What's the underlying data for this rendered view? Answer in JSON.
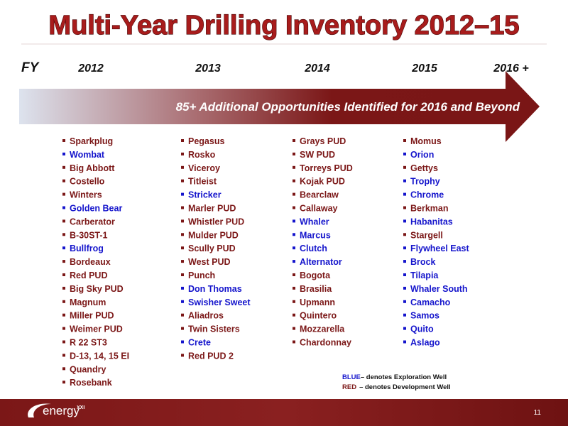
{
  "header": {
    "title": "Multi-Year Drilling Inventory 2012–15"
  },
  "timeline": {
    "label": "FY",
    "years": [
      "2012",
      "2013",
      "2014",
      "2015",
      "2016 +"
    ],
    "banner": "85+ Additional Opportunities Identified for 2016 and Beyond"
  },
  "columns": [
    {
      "items": [
        {
          "text": "Sparkplug",
          "color": "#7b1717"
        },
        {
          "text": "Wombat",
          "color": "#1515cc"
        },
        {
          "text": "Big Abbott",
          "color": "#7b1717"
        },
        {
          "text": "Costello",
          "color": "#7b1717"
        },
        {
          "text": "Winters",
          "color": "#7b1717"
        },
        {
          "text": "Golden Bear",
          "color": "#1515cc"
        },
        {
          "text": "Carberator",
          "color": "#7b1717"
        },
        {
          "text": "B-30ST-1",
          "color": "#7b1717"
        },
        {
          "text": "Bullfrog",
          "color": "#1515cc"
        },
        {
          "text": "Bordeaux",
          "color": "#7b1717"
        },
        {
          "text": "Red PUD",
          "color": "#7b1717"
        },
        {
          "text": "Big Sky PUD",
          "color": "#7b1717"
        },
        {
          "text": "Magnum",
          "color": "#7b1717"
        },
        {
          "text": "Miller PUD",
          "color": "#7b1717"
        },
        {
          "text": "Weimer PUD",
          "color": "#7b1717"
        },
        {
          "text": "R 22 ST3",
          "color": "#7b1717"
        },
        {
          "text": "D-13, 14, 15  EI",
          "color": "#7b1717"
        },
        {
          "text": "Quandry",
          "color": "#7b1717"
        },
        {
          "text": "Rosebank",
          "color": "#7b1717"
        }
      ]
    },
    {
      "items": [
        {
          "text": "Pegasus",
          "color": "#7b1717"
        },
        {
          "text": "Rosko",
          "color": "#7b1717"
        },
        {
          "text": "Viceroy",
          "color": "#7b1717"
        },
        {
          "text": "Titleist",
          "color": "#7b1717"
        },
        {
          "text": "Stricker",
          "color": "#1515cc"
        },
        {
          "text": "Marler PUD",
          "color": "#7b1717"
        },
        {
          "text": "Whistler PUD",
          "color": "#7b1717"
        },
        {
          "text": "Mulder PUD",
          "color": "#7b1717"
        },
        {
          "text": "Scully PUD",
          "color": "#7b1717"
        },
        {
          "text": "West PUD",
          "color": "#7b1717"
        },
        {
          "text": "Punch",
          "color": "#7b1717"
        },
        {
          "text": "Don Thomas",
          "color": "#1515cc"
        },
        {
          "text": "Swisher Sweet",
          "color": "#1515cc"
        },
        {
          "text": "Aliadros",
          "color": "#7b1717"
        },
        {
          "text": "Twin Sisters",
          "color": "#7b1717"
        },
        {
          "text": "Crete",
          "color": "#1515cc"
        },
        {
          "text": "Red PUD 2",
          "color": "#7b1717"
        }
      ]
    },
    {
      "items": [
        {
          "text": "Grays PUD",
          "color": "#7b1717"
        },
        {
          "text": "SW PUD",
          "color": "#7b1717"
        },
        {
          "text": "Torreys PUD",
          "color": "#7b1717"
        },
        {
          "text": "Kojak PUD",
          "color": "#7b1717"
        },
        {
          "text": "Bearclaw",
          "color": "#7b1717"
        },
        {
          "text": "Callaway",
          "color": "#7b1717"
        },
        {
          "text": "Whaler",
          "color": "#1515cc"
        },
        {
          "text": "Marcus",
          "color": "#1515cc"
        },
        {
          "text": "Clutch",
          "color": "#1515cc"
        },
        {
          "text": "Alternator",
          "color": "#1515cc"
        },
        {
          "text": "Bogota",
          "color": "#7b1717"
        },
        {
          "text": "Brasilia",
          "color": "#7b1717"
        },
        {
          "text": "Upmann",
          "color": "#7b1717"
        },
        {
          "text": "Quintero",
          "color": "#7b1717"
        },
        {
          "text": "Mozzarella",
          "color": "#7b1717"
        },
        {
          "text": "Chardonnay",
          "color": "#7b1717"
        }
      ]
    },
    {
      "items": [
        {
          "text": "Momus",
          "color": "#7b1717"
        },
        {
          "text": "Orion",
          "color": "#1515cc"
        },
        {
          "text": "Gettys",
          "color": "#7b1717"
        },
        {
          "text": "Trophy",
          "color": "#1515cc"
        },
        {
          "text": "Chrome",
          "color": "#1515cc"
        },
        {
          "text": "Berkman",
          "color": "#7b1717"
        },
        {
          "text": "Habanitas",
          "color": "#1515cc"
        },
        {
          "text": "Stargell",
          "color": "#7b1717"
        },
        {
          "text": "Flywheel East",
          "color": "#1515cc"
        },
        {
          "text": "Brock",
          "color": "#1515cc"
        },
        {
          "text": "Tilapia",
          "color": "#1515cc"
        },
        {
          "text": "Whaler South",
          "color": "#1515cc"
        },
        {
          "text": "Camacho",
          "color": "#1515cc"
        },
        {
          "text": "Samos",
          "color": "#1515cc"
        },
        {
          "text": "Quito",
          "color": "#1515cc"
        },
        {
          "text": "Aslago",
          "color": "#1515cc"
        }
      ]
    }
  ],
  "legend": [
    {
      "key": "BLUE",
      "text": "– denotes Exploration Well",
      "color": "#1515cc"
    },
    {
      "key": "RED",
      "text": "– denotes Development Well",
      "color": "#7b1717"
    }
  ],
  "footer": {
    "logo": "energy",
    "logo_mark": "XXI",
    "page": "11"
  }
}
